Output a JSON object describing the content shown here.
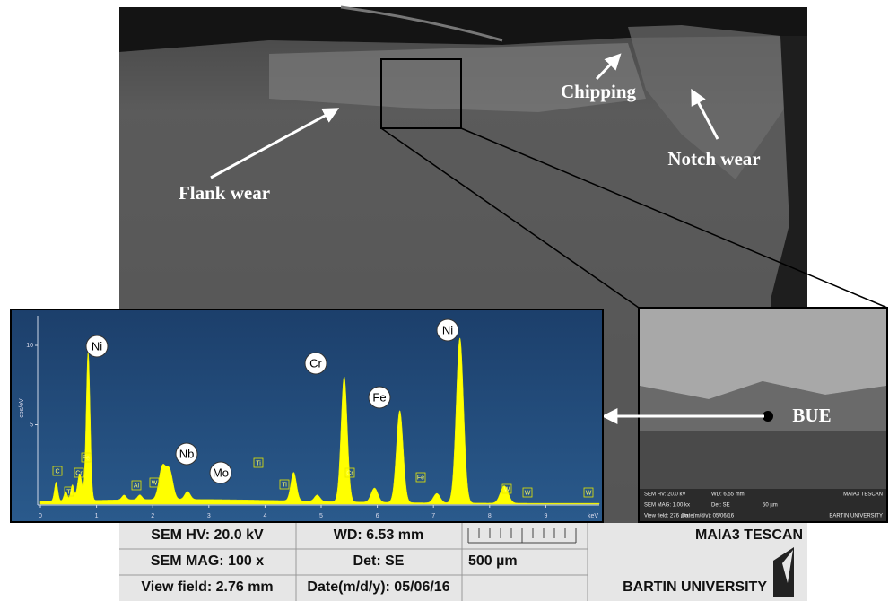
{
  "annotations": {
    "chipping": "Chipping",
    "notch_wear": "Notch wear",
    "flank_wear": "Flank wear",
    "bue": "BUE"
  },
  "info_bar": {
    "hv": "SEM HV: 20.0 kV",
    "wd": "WD: 6.53 mm",
    "brand": "MAIA3 TESCAN",
    "mag": "SEM MAG: 100 x",
    "det": "Det: SE",
    "scale": "500 µm",
    "view_field": "View field: 2.76 mm",
    "date": "Date(m/d/y): 05/06/16",
    "university": "BARTIN UNIVERSITY"
  },
  "inset_info": {
    "hv": "SEM HV: 20.0 kV",
    "wd": "WD: 6.55 mm",
    "brand": "MAIA3 TESCAN",
    "mag": "SEM MAG: 1.00 kx",
    "det": "Det: SE",
    "scale": "50 µm",
    "view_field": "View field: 276 µm",
    "date": "Date(m/d/y): 05/06/16",
    "university": "BARTIN UNIVERSITY"
  },
  "spectrum": {
    "y_axis_label": "cps/eV",
    "x_unit": "keV",
    "xticks": [
      0,
      1,
      2,
      3,
      4,
      5,
      6,
      7,
      8,
      9
    ],
    "yticks": [
      5,
      10
    ],
    "peak_labels": [
      "Ni",
      "Nb",
      "Mo",
      "Cr",
      "Fe",
      "Ni"
    ],
    "minor_labels": [
      "C",
      "Ti",
      "Cr",
      "Fe",
      "Al",
      "W",
      "Ti",
      "Ti",
      "Cr",
      "Fe",
      "W",
      "W",
      "W"
    ]
  }
}
